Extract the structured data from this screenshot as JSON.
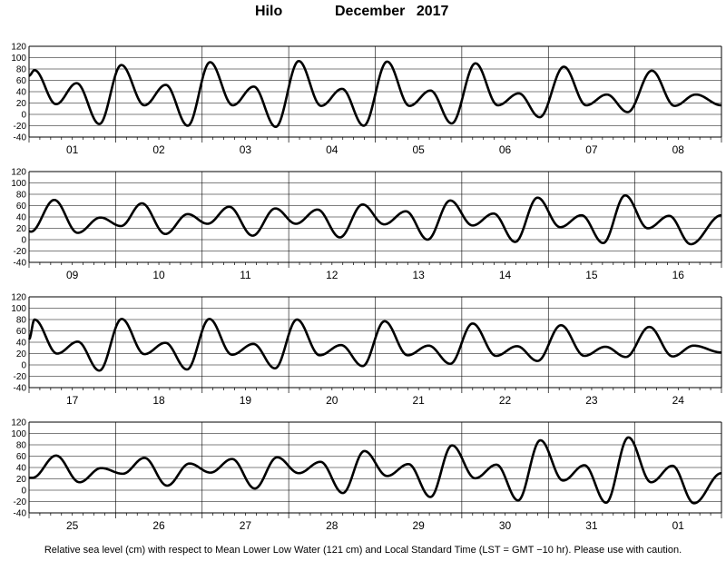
{
  "chart_data": {
    "type": "line",
    "title_station": "Hilo",
    "title_period": "December 2017",
    "y_ticks": [
      120,
      100,
      80,
      60,
      40,
      20,
      0,
      -20,
      -40
    ],
    "ylim": [
      -40,
      120
    ],
    "grid": true,
    "panels": [
      {
        "days": [
          "01",
          "02",
          "03",
          "04",
          "05",
          "06",
          "07",
          "08"
        ],
        "tides": [
          [
            0,
            68
          ],
          [
            1.5,
            78
          ],
          [
            7.5,
            18
          ],
          [
            13.2,
            55
          ],
          [
            19.5,
            -17
          ],
          [
            25.6,
            87
          ],
          [
            32,
            16
          ],
          [
            37.9,
            52
          ],
          [
            44,
            -20
          ],
          [
            50.2,
            92
          ],
          [
            56.5,
            16
          ],
          [
            62.3,
            49
          ],
          [
            68.4,
            -22
          ],
          [
            74.8,
            94
          ],
          [
            81,
            15
          ],
          [
            86.8,
            45
          ],
          [
            92.8,
            -20
          ],
          [
            99.3,
            93
          ],
          [
            105.5,
            15
          ],
          [
            111.3,
            42
          ],
          [
            117.2,
            -16
          ],
          [
            123.8,
            90
          ],
          [
            130,
            16
          ],
          [
            135.8,
            37
          ],
          [
            141.6,
            -5
          ],
          [
            148.3,
            84
          ],
          [
            154.5,
            16
          ],
          [
            160.2,
            35
          ],
          [
            166,
            4
          ],
          [
            172.7,
            77
          ],
          [
            179,
            15
          ],
          [
            184.9,
            35
          ],
          [
            192,
            16
          ]
        ]
      },
      {
        "days": [
          "09",
          "10",
          "11",
          "12",
          "13",
          "14",
          "15",
          "16"
        ],
        "tides": [
          [
            0,
            15
          ],
          [
            0.5,
            14
          ],
          [
            7,
            70
          ],
          [
            13.5,
            12
          ],
          [
            19.8,
            39
          ],
          [
            25.5,
            24
          ],
          [
            31.3,
            64
          ],
          [
            37.8,
            10
          ],
          [
            44,
            45
          ],
          [
            49.5,
            28
          ],
          [
            55.5,
            58
          ],
          [
            62,
            7
          ],
          [
            68.3,
            55
          ],
          [
            74,
            28
          ],
          [
            80,
            53
          ],
          [
            86.2,
            4
          ],
          [
            92.5,
            62
          ],
          [
            98.5,
            27
          ],
          [
            104.5,
            50
          ],
          [
            110.5,
            0
          ],
          [
            116.8,
            69
          ],
          [
            123,
            25
          ],
          [
            128.8,
            46
          ],
          [
            134.8,
            -4
          ],
          [
            141,
            74
          ],
          [
            147.3,
            22
          ],
          [
            153.2,
            43
          ],
          [
            159.2,
            -6
          ],
          [
            165.3,
            78
          ],
          [
            171.6,
            20
          ],
          [
            177.5,
            42
          ],
          [
            183.5,
            -8
          ],
          [
            192,
            43
          ]
        ]
      },
      {
        "days": [
          "17",
          "18",
          "19",
          "20",
          "21",
          "22",
          "23",
          "24"
        ],
        "tides": [
          [
            0,
            45
          ],
          [
            1.5,
            80
          ],
          [
            7.8,
            20
          ],
          [
            13.5,
            41
          ],
          [
            19.5,
            -10
          ],
          [
            25.7,
            81
          ],
          [
            32,
            19
          ],
          [
            37.8,
            39
          ],
          [
            43.8,
            -8
          ],
          [
            50,
            81
          ],
          [
            56.3,
            18
          ],
          [
            62.2,
            37
          ],
          [
            68.2,
            -6
          ],
          [
            74.3,
            80
          ],
          [
            80.6,
            17
          ],
          [
            86.5,
            35
          ],
          [
            92.5,
            -2
          ],
          [
            98.6,
            77
          ],
          [
            105,
            17
          ],
          [
            110.8,
            34
          ],
          [
            116.8,
            2
          ],
          [
            123,
            73
          ],
          [
            129.5,
            16
          ],
          [
            135.3,
            33
          ],
          [
            141,
            7
          ],
          [
            147.5,
            70
          ],
          [
            154,
            16
          ],
          [
            159.8,
            32
          ],
          [
            165.5,
            14
          ],
          [
            172,
            67
          ],
          [
            178.5,
            15
          ],
          [
            184.3,
            34
          ],
          [
            192,
            22
          ]
        ]
      },
      {
        "days": [
          "25",
          "26",
          "27",
          "28",
          "29",
          "30",
          "31",
          "01"
        ],
        "tides": [
          [
            0,
            22
          ],
          [
            1,
            22
          ],
          [
            7.5,
            61
          ],
          [
            14,
            14
          ],
          [
            20,
            39
          ],
          [
            26,
            29
          ],
          [
            32,
            57
          ],
          [
            38.3,
            8
          ],
          [
            44.5,
            47
          ],
          [
            50.3,
            31
          ],
          [
            56.3,
            55
          ],
          [
            62.6,
            3
          ],
          [
            68.8,
            58
          ],
          [
            74.8,
            30
          ],
          [
            80.8,
            50
          ],
          [
            87,
            -5
          ],
          [
            93,
            69
          ],
          [
            99.3,
            25
          ],
          [
            105.2,
            46
          ],
          [
            111.3,
            -12
          ],
          [
            117.3,
            79
          ],
          [
            123.7,
            21
          ],
          [
            129.6,
            45
          ],
          [
            135.6,
            -18
          ],
          [
            141.8,
            88
          ],
          [
            148.1,
            17
          ],
          [
            154,
            44
          ],
          [
            160,
            -22
          ],
          [
            166.2,
            93
          ],
          [
            172.5,
            14
          ],
          [
            178.4,
            43
          ],
          [
            184.4,
            -23
          ],
          [
            192,
            30
          ]
        ]
      }
    ],
    "footer": "Relative sea level (cm) with respect to Mean Lower Low Water (121 cm) and Local Standard Time (LST = GMT −10 hr). Please use with caution."
  }
}
